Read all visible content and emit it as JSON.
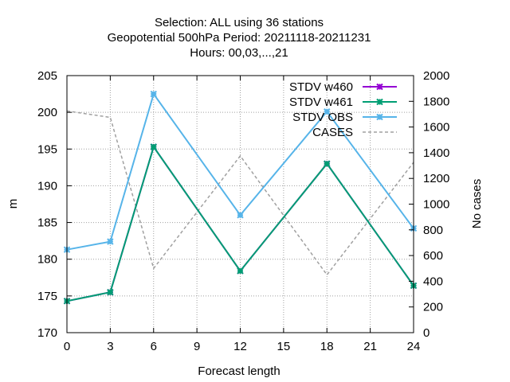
{
  "chart_data": {
    "type": "line",
    "title": [
      "Selection: ALL using    36 stations",
      "Geopotential 500hPa   Period: 20211118-20211231",
      "Hours:  00,03,...,21"
    ],
    "xlabel": "Forecast length",
    "ylabel": "m",
    "y2label": "No cases",
    "x": [
      0,
      3,
      6,
      12,
      18,
      24
    ],
    "xticks": [
      "0",
      "3",
      "6",
      "9",
      "12",
      "15",
      "18",
      "21",
      "24"
    ],
    "xlim": [
      0,
      24
    ],
    "ylim": [
      170,
      205
    ],
    "yticks": [
      "170",
      "175",
      "180",
      "185",
      "190",
      "195",
      "200",
      "205"
    ],
    "y2lim": [
      0,
      2000
    ],
    "y2ticks": [
      "0",
      "200",
      "400",
      "600",
      "800",
      "1000",
      "1200",
      "1400",
      "1600",
      "1800",
      "2000"
    ],
    "grid": true,
    "legend_position": "top-right",
    "series": [
      {
        "name": "STDV w460",
        "axis": "y1",
        "color": "#9400d3",
        "marker": "x-star",
        "values": [
          174.3,
          175.5,
          195.3,
          178.4,
          193.0,
          176.4
        ]
      },
      {
        "name": "STDV w461",
        "axis": "y1",
        "color": "#009e73",
        "marker": "x-star",
        "values": [
          174.3,
          175.5,
          195.3,
          178.4,
          193.0,
          176.4
        ]
      },
      {
        "name": "STDV OBS",
        "axis": "y1",
        "color": "#56b4e9",
        "marker": "x-star",
        "values": [
          181.3,
          182.4,
          202.5,
          186.0,
          200.1,
          184.2
        ]
      },
      {
        "name": "CASES",
        "axis": "y2",
        "color": "#a0a0a0",
        "dashed": true,
        "values": [
          1725,
          1675,
          500,
          1375,
          450,
          1325
        ]
      }
    ]
  }
}
